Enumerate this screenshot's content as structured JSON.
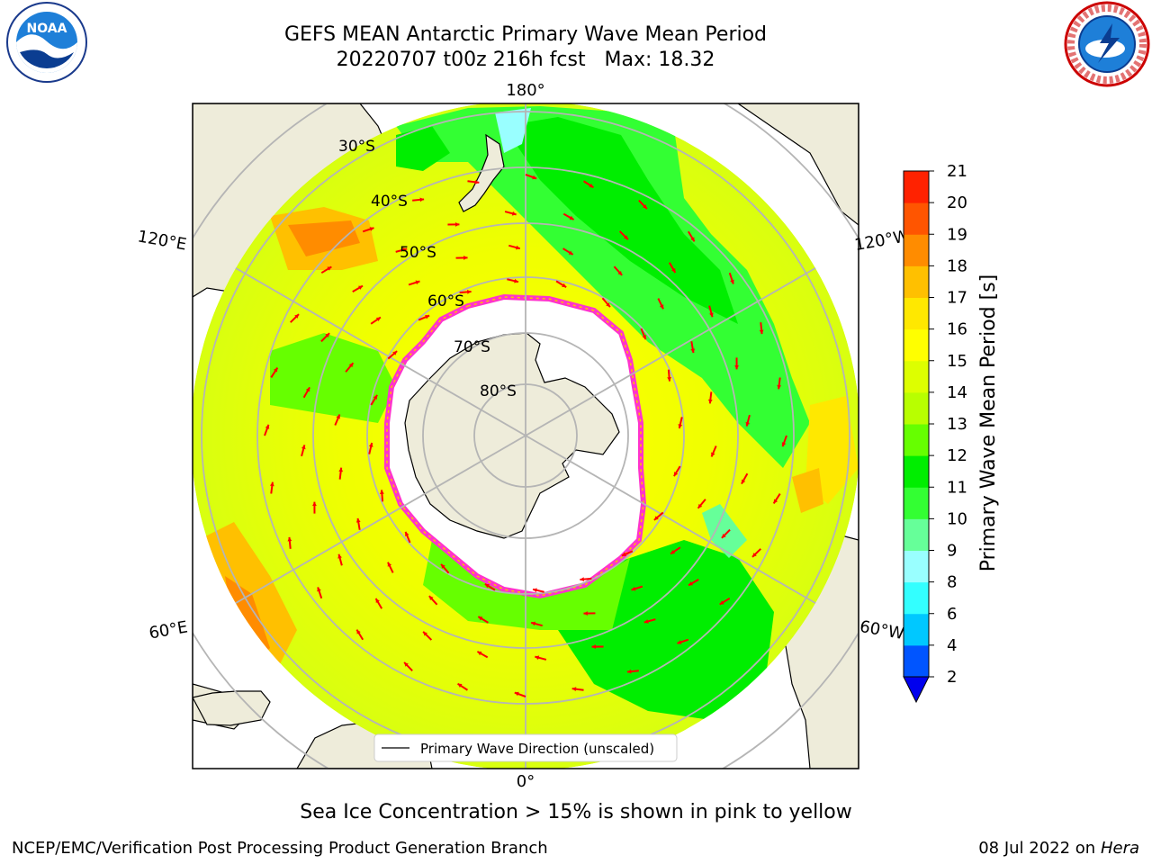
{
  "header": {
    "title_line1": "GEFS MEAN Antarctic Primary Wave Mean Period",
    "title_line2": "20220707 t00z 216h fcst   Max: 18.32"
  },
  "logos": {
    "left": "NOAA",
    "left_ring": "NATIONAL OCEANIC AND ATMOSPHERIC ADMINISTRATION · U.S. DEPARTMENT OF COMMERCE",
    "right_ring": "NATIONAL WEATHER SERVICE"
  },
  "map": {
    "projection": "south-polar-stereographic",
    "lon_labels": {
      "top": "180°",
      "bottom": "0°",
      "upper_left": "120°E",
      "upper_right": "120°W",
      "lower_left": "60°E",
      "lower_right": "60°W"
    },
    "lat_labels": [
      "30°S",
      "40°S",
      "50°S",
      "60°S",
      "70°S",
      "80°S"
    ],
    "legend_label": "Primary Wave Direction (unscaled)",
    "colors": {
      "land": "#eeecda",
      "sea_ice": "#ffffff",
      "ice_edge": "#ff33cc",
      "arrows": "#ff0000"
    }
  },
  "colorbar": {
    "label": "Primary Wave Mean Period [s]",
    "ticks": [
      "2",
      "4",
      "6",
      "8",
      "9",
      "10",
      "11",
      "12",
      "13",
      "14",
      "15",
      "16",
      "17",
      "18",
      "19",
      "20",
      "21"
    ],
    "colors": [
      "#0055ff",
      "#00c8ff",
      "#33ffff",
      "#99ffff",
      "#66ff99",
      "#33ff33",
      "#00ee00",
      "#66ff00",
      "#b8ff00",
      "#ddff00",
      "#ffff00",
      "#ffe800",
      "#ffc000",
      "#ff8c00",
      "#ff5500",
      "#ff2200"
    ],
    "extend_color": "#0000ee"
  },
  "notes": {
    "ice": "Sea Ice Concentration > 15% is shown in pink to yellow"
  },
  "footer": {
    "left": "NCEP/EMC/Verification Post Processing Product Generation Branch",
    "right_date": "08 Jul 2022 on",
    "right_host": "Hera"
  }
}
